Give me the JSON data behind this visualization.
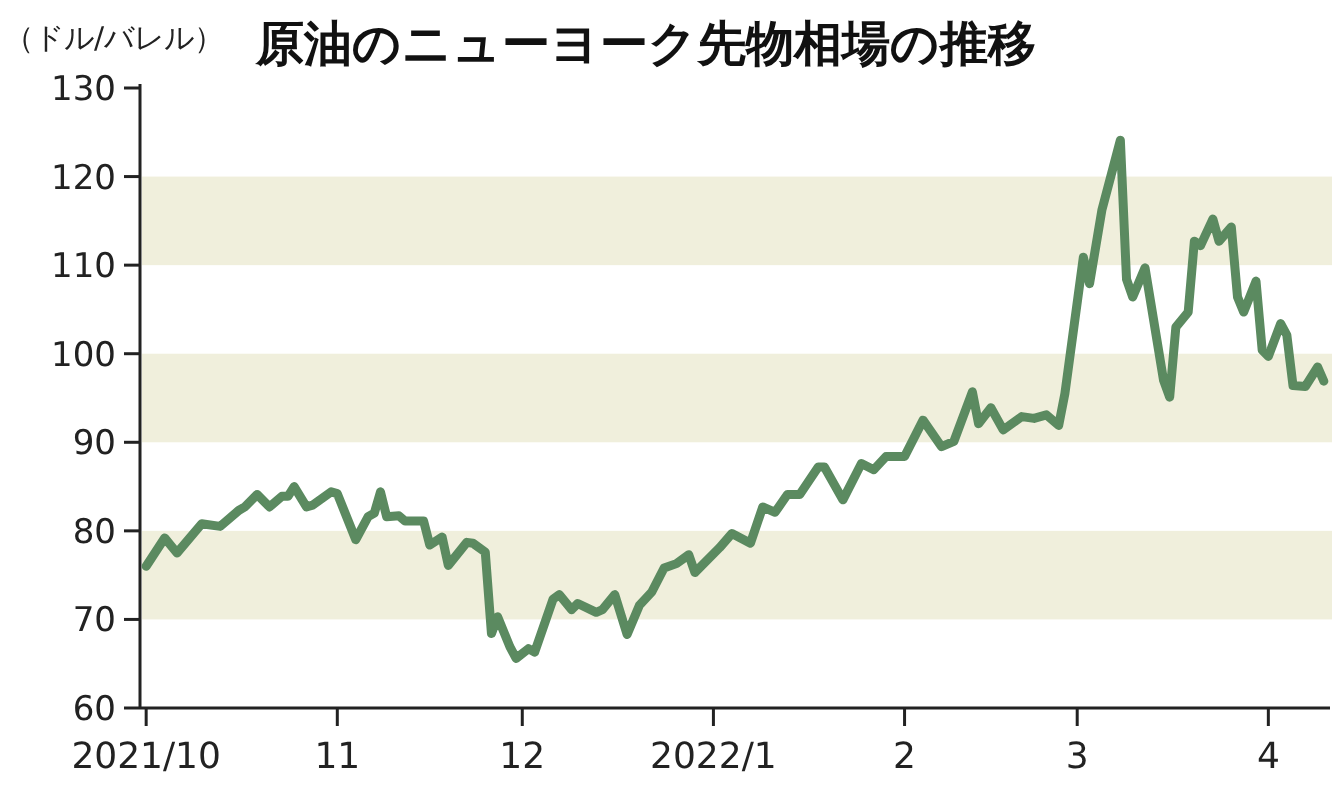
{
  "chart_data": {
    "type": "line",
    "title": "原油のニューヨーク先物相場の推移",
    "ylabel": "（ドル/バレル）",
    "x": [
      "2021-10-01",
      "2021-10-04",
      "2021-10-06",
      "2021-10-10",
      "2021-10-13",
      "2021-10-16",
      "2021-10-17",
      "2021-10-19",
      "2021-10-21",
      "2021-10-23",
      "2021-10-24",
      "2021-10-25",
      "2021-10-27",
      "2021-10-28",
      "2021-10-31",
      "2021-11-01",
      "2021-11-04",
      "2021-11-06",
      "2021-11-07",
      "2021-11-08",
      "2021-11-09",
      "2021-11-11",
      "2021-11-12",
      "2021-11-15",
      "2021-11-16",
      "2021-11-18",
      "2021-11-19",
      "2021-11-22",
      "2021-11-23",
      "2021-11-25",
      "2021-11-26",
      "2021-11-27",
      "2021-11-29",
      "2021-11-30",
      "2021-12-02",
      "2021-12-03",
      "2021-12-06",
      "2021-12-07",
      "2021-12-09",
      "2021-12-10",
      "2021-12-13",
      "2021-12-14",
      "2021-12-16",
      "2021-12-18",
      "2021-12-20",
      "2021-12-22",
      "2021-12-24",
      "2021-12-26",
      "2021-12-28",
      "2021-12-29",
      "2022-01-02",
      "2022-01-04",
      "2022-01-07",
      "2022-01-09",
      "2022-01-11",
      "2022-01-13",
      "2022-01-15",
      "2022-01-18",
      "2022-01-19",
      "2022-01-22",
      "2022-01-25",
      "2022-01-27",
      "2022-01-29",
      "2022-02-01",
      "2022-02-04",
      "2022-02-07",
      "2022-02-09",
      "2022-02-12",
      "2022-02-13",
      "2022-02-15",
      "2022-02-17",
      "2022-02-20",
      "2022-02-22",
      "2022-02-24",
      "2022-02-26",
      "2022-02-27",
      "2022-03-02",
      "2022-03-03",
      "2022-03-05",
      "2022-03-08",
      "2022-03-09",
      "2022-03-10",
      "2022-03-12",
      "2022-03-15",
      "2022-03-16",
      "2022-03-17",
      "2022-03-19",
      "2022-03-20",
      "2022-03-21",
      "2022-03-23",
      "2022-03-24",
      "2022-03-26",
      "2022-03-27",
      "2022-03-28",
      "2022-03-30",
      "2022-03-31",
      "2022-04-01",
      "2022-04-03",
      "2022-04-04",
      "2022-04-05",
      "2022-04-07",
      "2022-04-09",
      "2022-04-10"
    ],
    "series": [
      {
        "color": "#5b8a60",
        "values": [
          76.0,
          79.2,
          77.5,
          80.8,
          80.5,
          82.3,
          82.7,
          84.1,
          82.7,
          83.9,
          83.9,
          85.0,
          82.7,
          82.9,
          84.4,
          84.2,
          79.0,
          81.6,
          82.0,
          84.4,
          81.6,
          81.7,
          81.1,
          81.1,
          78.4,
          79.3,
          76.1,
          78.7,
          78.6,
          77.6,
          68.4,
          70.3,
          66.9,
          65.6,
          66.7,
          66.3,
          72.3,
          72.8,
          71.1,
          71.8,
          70.8,
          71.1,
          72.8,
          68.3,
          71.6,
          73.1,
          75.8,
          76.3,
          77.3,
          75.3,
          78.1,
          79.7,
          78.6,
          82.7,
          82.1,
          84.1,
          84.1,
          87.2,
          87.2,
          83.5,
          87.6,
          86.9,
          88.4,
          88.4,
          92.5,
          89.5,
          90.1,
          95.7,
          92.1,
          93.9,
          91.4,
          92.9,
          92.7,
          93.1,
          91.9,
          95.5,
          110.9,
          107.9,
          116.2,
          124.1,
          108.4,
          106.4,
          109.7,
          97.0,
          95.1,
          103.0,
          104.7,
          112.7,
          112.2,
          115.2,
          112.7,
          114.3,
          106.4,
          104.7,
          108.2,
          100.4,
          99.7,
          103.4,
          102.1,
          96.4,
          96.3,
          98.5,
          96.9
        ]
      }
    ],
    "xlim": [
      "2021-09-30",
      "2022-04-11"
    ],
    "xticks": [
      {
        "value": "2021-10-01",
        "label": "2021/10"
      },
      {
        "value": "2021-11-01",
        "label": "11"
      },
      {
        "value": "2021-12-01",
        "label": "12"
      },
      {
        "value": "2022-01-01",
        "label": "2022/1"
      },
      {
        "value": "2022-02-01",
        "label": "2"
      },
      {
        "value": "2022-03-01",
        "label": "3"
      },
      {
        "value": "2022-04-01",
        "label": "4"
      }
    ],
    "ylim": [
      60,
      130
    ],
    "yticks": [
      60,
      70,
      80,
      90,
      100,
      110,
      120,
      130
    ],
    "bands": [
      {
        "axis": "y",
        "from": 70,
        "to": 80,
        "color": "#f0efdc"
      },
      {
        "axis": "y",
        "from": 90,
        "to": 100,
        "color": "#f0efdc"
      },
      {
        "axis": "y",
        "from": 110,
        "to": 120,
        "color": "#f0efdc"
      }
    ]
  }
}
